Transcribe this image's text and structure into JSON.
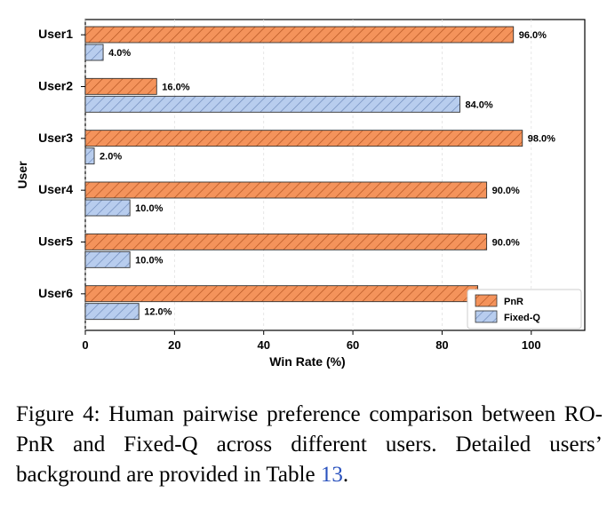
{
  "chart_data": {
    "type": "bar",
    "orientation": "horizontal",
    "categories": [
      "User1",
      "User2",
      "User3",
      "User4",
      "User5",
      "User6"
    ],
    "series": [
      {
        "name": "PnR",
        "values": [
          96.0,
          16.0,
          98.0,
          90.0,
          90.0,
          88.0
        ],
        "labels": [
          "96.0%",
          "16.0%",
          "98.0%",
          "90.0%",
          "90.0%",
          "88.0%"
        ]
      },
      {
        "name": "Fixed-Q",
        "values": [
          4.0,
          84.0,
          2.0,
          10.0,
          10.0,
          12.0
        ],
        "labels": [
          "4.0%",
          "84.0%",
          "2.0%",
          "10.0%",
          "10.0%",
          "12.0%"
        ]
      }
    ],
    "xlabel": "Win Rate (%)",
    "ylabel": "User",
    "xlim": [
      0,
      112
    ],
    "xticks": [
      "0",
      "20",
      "40",
      "60",
      "80",
      "100"
    ],
    "legend_position": "bottom-right",
    "colors": {
      "PnR": "#f4935b",
      "Fixed-Q": "#b8cdee"
    }
  },
  "caption": {
    "text": "Figure 4: Human pairwise preference comparison between RO-PnR and Fixed-Q across different users. Detailed users’ background are provided in Table ",
    "ref": "13",
    "end": "."
  }
}
